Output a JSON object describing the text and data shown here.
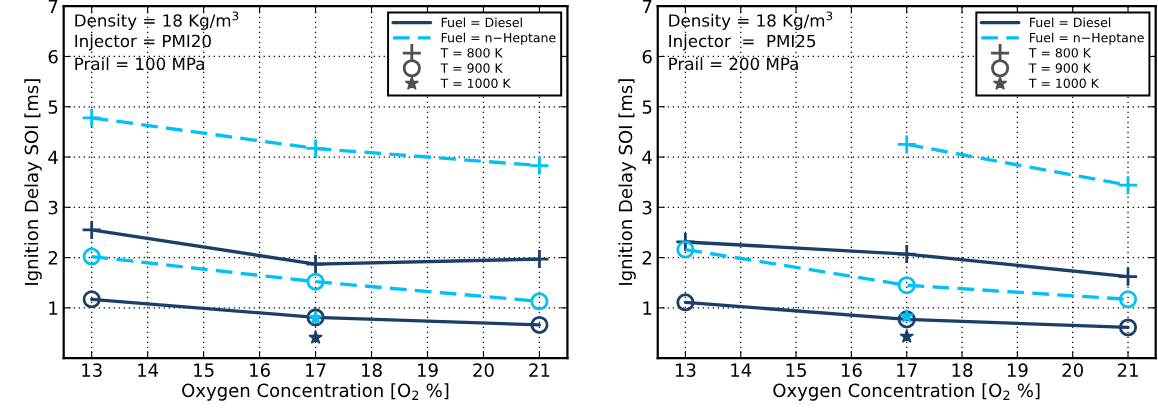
{
  "chart_data": [
    {
      "type": "line",
      "xlabel": "Oxygen Concentration [O$_{2}$ %]",
      "ylabel": "Ignition Delay SOI [ms]",
      "annotations": [
        "Density = 18 Kg/m$^{3}$",
        "Injector = PMI20",
        "Prail = 100 MPa"
      ],
      "x": [
        13,
        17,
        21
      ],
      "xlim": [
        12.5,
        21.5
      ],
      "xticks": [
        13,
        14,
        15,
        16,
        17,
        18,
        19,
        20,
        21
      ],
      "ylim": [
        0,
        7
      ],
      "yticks": [
        1,
        2,
        3,
        4,
        5,
        6,
        7
      ],
      "grid": true,
      "legend": "top right",
      "series": [
        {
          "color": "#1b3f68",
          "line_style": "solid",
          "marker": "cross",
          "values": [
            2.55,
            1.87,
            1.97
          ]
        },
        {
          "color": "#00c0f8",
          "line_style": "dashed",
          "marker": "cross",
          "values": [
            4.78,
            4.17,
            3.83
          ]
        },
        {
          "color": "#1b3f68",
          "line_style": "solid",
          "marker": "circle",
          "values": [
            1.17,
            0.81,
            0.66
          ]
        },
        {
          "color": "#00c0f8",
          "line_style": "dashed",
          "marker": "circle",
          "values": [
            2.02,
            1.52,
            1.13
          ]
        },
        {
          "type": "scatter",
          "color": "#1b3f68",
          "marker": "star",
          "values": [
            null,
            0.41,
            null
          ]
        },
        {
          "type": "scatter",
          "color": "#00c0f8",
          "marker": "star",
          "values": [
            null,
            0.8,
            null
          ]
        },
        {
          "name": "Fuel = Diesel",
          "color": "#1b3f68",
          "line_style": "solid",
          "marker": "none",
          "values": [
            null,
            null,
            null
          ]
        },
        {
          "name": "Fuel = n−Heptane",
          "color": "#00c0f8",
          "line_style": "dashed",
          "marker": "none",
          "values": [
            null,
            null,
            null
          ]
        },
        {
          "name": "T = 800 K",
          "type": "scatter",
          "color": "#505050",
          "marker": "cross",
          "values": [
            null,
            null,
            null
          ]
        },
        {
          "name": "T = 900 K",
          "type": "scatter",
          "color": "#505050",
          "marker": "circle",
          "values": [
            null,
            null,
            null
          ]
        },
        {
          "name": "T = 1000 K",
          "type": "scatter",
          "color": "#505050",
          "marker": "star",
          "values": [
            null,
            null,
            null
          ]
        }
      ]
    },
    {
      "type": "line",
      "xlabel": "Oxygen Concentration [O$_{2}$ %]",
      "ylabel": "Ignition Delay SOI [ms]",
      "annotations": [
        "Density = 18 Kg/m$^{3}$",
        "Injector  =  PMI25",
        "Prail = 200 MPa"
      ],
      "x": [
        13,
        17,
        21
      ],
      "xlim": [
        12.5,
        21.5
      ],
      "xticks": [
        13,
        14,
        15,
        16,
        17,
        18,
        19,
        20,
        21
      ],
      "ylim": [
        0,
        7
      ],
      "yticks": [
        1,
        2,
        3,
        4,
        5,
        6,
        7
      ],
      "grid": true,
      "legend": "top right",
      "series": [
        {
          "color": "#1b3f68",
          "line_style": "solid",
          "marker": "cross",
          "values": [
            2.31,
            2.07,
            1.62
          ]
        },
        {
          "color": "#00c0f8",
          "line_style": "dashed",
          "marker": "cross",
          "values": [
            null,
            4.25,
            3.44
          ]
        },
        {
          "color": "#1b3f68",
          "line_style": "solid",
          "marker": "circle",
          "values": [
            1.11,
            0.77,
            0.61
          ]
        },
        {
          "color": "#00c0f8",
          "line_style": "dashed",
          "marker": "circle",
          "values": [
            2.16,
            1.45,
            1.17
          ]
        },
        {
          "type": "scatter",
          "color": "#1b3f68",
          "marker": "star",
          "values": [
            null,
            0.43,
            null
          ]
        },
        {
          "type": "scatter",
          "color": "#00c0f8",
          "marker": "star",
          "values": [
            null,
            0.83,
            null
          ]
        },
        {
          "name": "Fuel = Diesel",
          "color": "#1b3f68",
          "line_style": "solid",
          "marker": "none",
          "values": [
            null,
            null,
            null
          ]
        },
        {
          "name": "Fuel = n−Heptane",
          "color": "#00c0f8",
          "line_style": "dashed",
          "marker": "none",
          "values": [
            null,
            null,
            null
          ]
        },
        {
          "name": "T = 800 K",
          "type": "scatter",
          "color": "#505050",
          "marker": "cross",
          "values": [
            null,
            null,
            null
          ]
        },
        {
          "name": "T = 900 K",
          "type": "scatter",
          "color": "#505050",
          "marker": "circle",
          "values": [
            null,
            null,
            null
          ]
        },
        {
          "name": "T = 1000 K",
          "type": "scatter",
          "color": "#505050",
          "marker": "star",
          "values": [
            null,
            null,
            null
          ]
        }
      ]
    }
  ]
}
